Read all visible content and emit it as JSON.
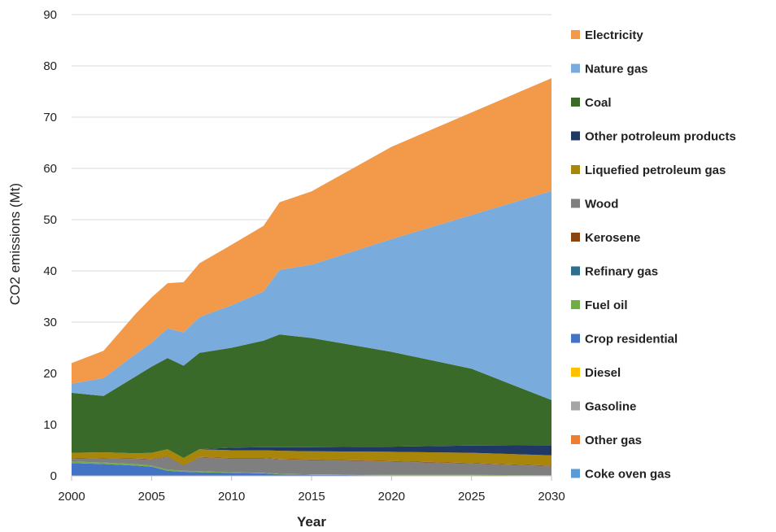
{
  "chart_data": {
    "type": "area",
    "stacked": true,
    "xlabel": "Year",
    "ylabel": "CO2 emissions (Mt)",
    "xlim": [
      2000,
      2030
    ],
    "ylim": [
      0,
      90
    ],
    "x_ticks": [
      2000,
      2005,
      2010,
      2015,
      2020,
      2025,
      2030
    ],
    "y_ticks": [
      0,
      10,
      20,
      30,
      40,
      50,
      60,
      70,
      80,
      90
    ],
    "grid": "horizontal",
    "legend_position": "right",
    "x": [
      2000,
      2002,
      2004,
      2005,
      2006,
      2007,
      2008,
      2010,
      2012,
      2013,
      2015,
      2020,
      2025,
      2030
    ],
    "series": [
      {
        "name": "Crop residential",
        "color": "#4472c4",
        "values": [
          2.5,
          2.3,
          2.0,
          1.8,
          1.0,
          0.8,
          0.7,
          0.6,
          0.5,
          0.3,
          0.2,
          0.1,
          0.1,
          0.0
        ]
      },
      {
        "name": "Fuel oil",
        "color": "#70ad47",
        "values": [
          0.3,
          0.3,
          0.3,
          0.2,
          0.2,
          0.2,
          0.2,
          0.1,
          0.1,
          0.1,
          0.1,
          0.1,
          0.1,
          0.1
        ]
      },
      {
        "name": "Wood",
        "color": "#7f7f7f",
        "values": [
          0.5,
          0.8,
          1.0,
          1.2,
          2.5,
          1.0,
          2.7,
          2.7,
          2.8,
          2.8,
          2.8,
          2.6,
          2.2,
          1.8
        ]
      },
      {
        "name": "Kerosene",
        "color": "#8b4513",
        "values": [
          0.1,
          0.1,
          0.1,
          0.1,
          0.1,
          0.1,
          0.1,
          0.1,
          0.1,
          0.1,
          0.1,
          0.1,
          0.1,
          0.1
        ]
      },
      {
        "name": "Liquefied petroleum gas",
        "color": "#a8860a",
        "values": [
          1.1,
          1.1,
          1.0,
          1.2,
          1.4,
          1.4,
          1.5,
          1.5,
          1.5,
          1.6,
          1.6,
          1.8,
          2.0,
          2.0
        ]
      },
      {
        "name": "Other potroleum products",
        "color": "#1f3864",
        "values": [
          0.0,
          0.0,
          0.0,
          0.0,
          0.0,
          0.0,
          0.0,
          0.5,
          0.6,
          0.7,
          0.8,
          1.0,
          1.4,
          2.0
        ]
      },
      {
        "name": "Coal",
        "color": "#3a6a2a",
        "values": [
          11.7,
          11.0,
          15.0,
          16.8,
          17.8,
          18.0,
          18.8,
          19.5,
          20.8,
          22.0,
          21.3,
          18.5,
          15.0,
          8.8
        ]
      },
      {
        "name": "Nature gas",
        "color": "#7aabdd",
        "values": [
          1.8,
          3.5,
          4.4,
          4.7,
          5.8,
          6.5,
          7.0,
          8.3,
          9.6,
          12.6,
          14.3,
          22.0,
          30.0,
          40.8
        ]
      },
      {
        "name": "Electricity",
        "color": "#f2994a",
        "values": [
          4.0,
          5.3,
          7.8,
          8.8,
          8.8,
          9.8,
          10.5,
          11.8,
          12.8,
          13.2,
          14.3,
          18.0,
          20.0,
          22.0
        ]
      }
    ],
    "legend": [
      {
        "label": "Electricity",
        "color": "#f2994a"
      },
      {
        "label": "Nature gas",
        "color": "#7aabdd"
      },
      {
        "label": "Coal",
        "color": "#3a6a2a"
      },
      {
        "label": "Other potroleum products",
        "color": "#1f3864"
      },
      {
        "label": "Liquefied petroleum gas",
        "color": "#a8860a"
      },
      {
        "label": "Wood",
        "color": "#7f7f7f"
      },
      {
        "label": "Kerosene",
        "color": "#8b4513"
      },
      {
        "label": "Refinary gas",
        "color": "#2e6e8e"
      },
      {
        "label": "Fuel oil",
        "color": "#70ad47"
      },
      {
        "label": "Crop residential",
        "color": "#4472c4"
      },
      {
        "label": "Diesel",
        "color": "#ffc000"
      },
      {
        "label": "Gasoline",
        "color": "#a5a5a5"
      },
      {
        "label": "Other gas",
        "color": "#ed7d31"
      },
      {
        "label": "Coke oven gas",
        "color": "#5b9bd5"
      }
    ]
  }
}
